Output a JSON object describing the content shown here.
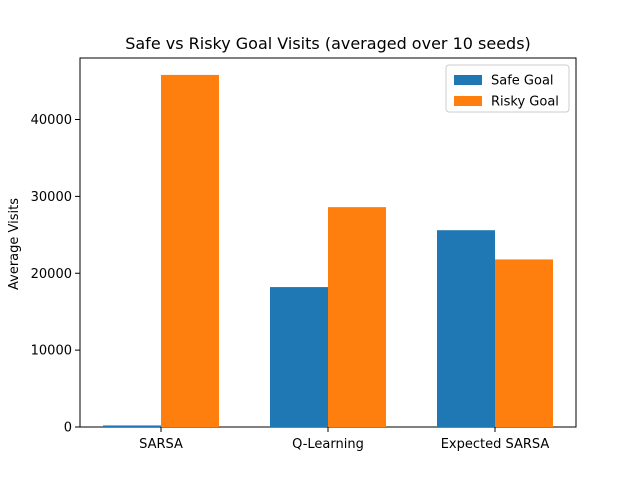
{
  "chart_data": {
    "type": "bar",
    "title": "Safe vs Risky Goal Visits (averaged over 10 seeds)",
    "xlabel": "",
    "ylabel": "Average Visits",
    "categories": [
      "SARSA",
      "Q-Learning",
      "Expected SARSA"
    ],
    "series": [
      {
        "name": "Safe Goal",
        "color": "#1f77b4",
        "values": [
          200,
          18200,
          25600
        ]
      },
      {
        "name": "Risky Goal",
        "color": "#ff7f0e",
        "values": [
          45800,
          28600,
          21800
        ]
      }
    ],
    "ylim": [
      0,
      48000
    ],
    "yticks": [
      0,
      10000,
      20000,
      30000,
      40000
    ],
    "ytick_labels": [
      "0",
      "10000",
      "20000",
      "30000",
      "40000"
    ],
    "grid": false,
    "legend_position": "top-right"
  }
}
